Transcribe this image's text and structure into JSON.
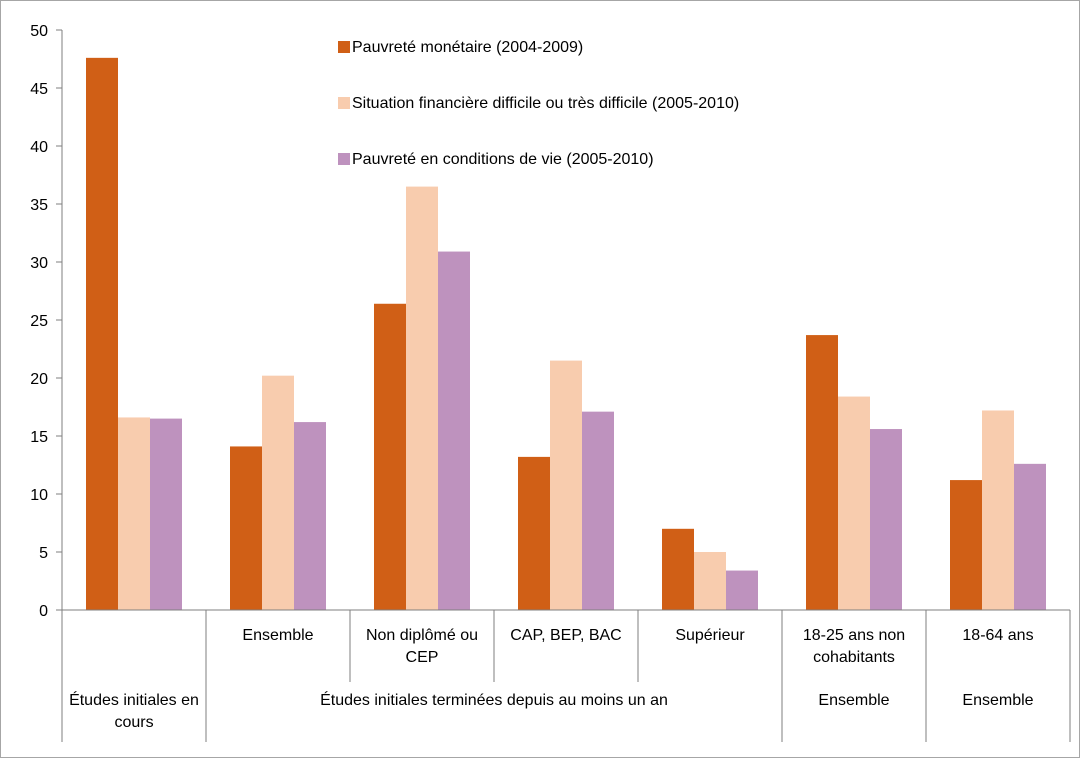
{
  "chart_data": {
    "type": "bar",
    "title": "",
    "xlabel": "",
    "ylabel": "",
    "ylim": [
      0,
      50
    ],
    "yticks": [
      0,
      5,
      10,
      15,
      20,
      25,
      30,
      35,
      40,
      45,
      50
    ],
    "grid": false,
    "legend_position": "top-center",
    "categories": [
      {
        "label": "",
        "group": "Études initiales en cours"
      },
      {
        "label": "Ensemble",
        "group": "Études initiales terminées depuis au moins un an"
      },
      {
        "label": "Non diplômé ou CEP",
        "group": "Études initiales terminées depuis au moins un an"
      },
      {
        "label": "CAP, BEP, BAC",
        "group": "Études initiales terminées depuis au moins un an"
      },
      {
        "label": "Supérieur",
        "group": "Études initiales terminées depuis au moins un an"
      },
      {
        "label": "18-25 ans non cohabitants",
        "group": "Ensemble"
      },
      {
        "label": "18-64 ans",
        "group": "Ensemble"
      }
    ],
    "category_lines": [
      [],
      [
        "Ensemble"
      ],
      [
        "Non diplômé ou",
        "CEP"
      ],
      [
        "CAP, BEP, BAC"
      ],
      [
        "Supérieur"
      ],
      [
        "18-25 ans non",
        "cohabitants"
      ],
      [
        "18-64 ans"
      ]
    ],
    "groups": [
      {
        "lines": [
          "Études initiales en",
          "cours"
        ],
        "span": [
          0,
          0
        ]
      },
      {
        "lines": [
          "Études initiales terminées depuis au moins un an"
        ],
        "span": [
          1,
          4
        ]
      },
      {
        "lines": [
          "Ensemble"
        ],
        "span": [
          5,
          5
        ]
      },
      {
        "lines": [
          "Ensemble"
        ],
        "span": [
          6,
          6
        ]
      }
    ],
    "series": [
      {
        "name": "Pauvreté monétaire (2004-2009)",
        "color": "#D05F16",
        "values": [
          47.6,
          14.1,
          26.4,
          13.2,
          7.0,
          23.7,
          11.2
        ]
      },
      {
        "name": "Situation financière difficile ou très difficile (2005-2010)",
        "color": "#F8CCAE",
        "values": [
          16.6,
          20.2,
          36.5,
          21.5,
          5.0,
          18.4,
          17.2
        ]
      },
      {
        "name": "Pauvreté en conditions de vie (2005-2010)",
        "color": "#BE92BE",
        "values": [
          16.5,
          16.2,
          30.9,
          17.1,
          3.4,
          15.6,
          12.6
        ]
      }
    ]
  }
}
